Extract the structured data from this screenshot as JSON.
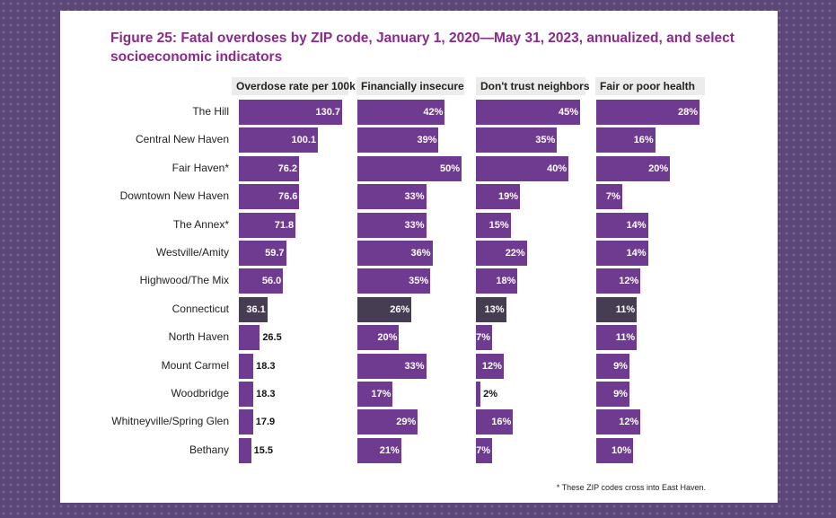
{
  "title": "Figure 25: Fatal overdoses by ZIP code, January 1, 2020—May 31, 2023, annualized, and select socioeconomic indicators",
  "footnote": "* These ZIP codes cross into East Haven.",
  "colors": {
    "bar": "#6f3b91",
    "highlight": "#463d52",
    "title": "#8a2b8c"
  },
  "chart_data": {
    "type": "bar",
    "orientation": "horizontal",
    "categories": [
      "The Hill",
      "Central New Haven",
      "Fair Haven*",
      "Downtown New Haven",
      "The Annex*",
      "Westville/Amity",
      "Highwood/The Mix",
      "Connecticut",
      "North Haven",
      "Mount Carmel",
      "Woodbridge",
      "Whitneyville/Spring Glen",
      "Bethany"
    ],
    "highlight_category": "Connecticut",
    "series": [
      {
        "name": "Overdose rate per 100k",
        "values": [
          130.7,
          100.1,
          76.2,
          76.6,
          71.8,
          59.7,
          56.0,
          36.1,
          26.5,
          18.3,
          18.3,
          17.9,
          15.5
        ],
        "labels": [
          "130.7",
          "100.1",
          "76.2",
          "76.6",
          "71.8",
          "59.7",
          "56.0",
          "36.1",
          "26.5",
          "18.3",
          "18.3",
          "17.9",
          "15.5"
        ]
      },
      {
        "name": "Financially insecure",
        "values": [
          42,
          39,
          50,
          33,
          33,
          36,
          35,
          26,
          20,
          33,
          17,
          29,
          21
        ],
        "labels": [
          "42%",
          "39%",
          "50%",
          "33%",
          "33%",
          "36%",
          "35%",
          "26%",
          "20%",
          "33%",
          "17%",
          "29%",
          "21%"
        ]
      },
      {
        "name": "Don't trust neighbors",
        "values": [
          45,
          35,
          40,
          19,
          15,
          22,
          18,
          13,
          7,
          12,
          2,
          16,
          7
        ],
        "labels": [
          "45%",
          "35%",
          "40%",
          "19%",
          "15%",
          "22%",
          "18%",
          "13%",
          "7%",
          "12%",
          "2%",
          "16%",
          "7%"
        ]
      },
      {
        "name": "Fair or poor health",
        "values": [
          28,
          16,
          20,
          7,
          14,
          14,
          12,
          11,
          11,
          9,
          9,
          12,
          10
        ],
        "labels": [
          "28%",
          "16%",
          "20%",
          "7%",
          "14%",
          "14%",
          "12%",
          "11%",
          "11%",
          "9%",
          "9%",
          "12%",
          "10%"
        ]
      }
    ]
  }
}
